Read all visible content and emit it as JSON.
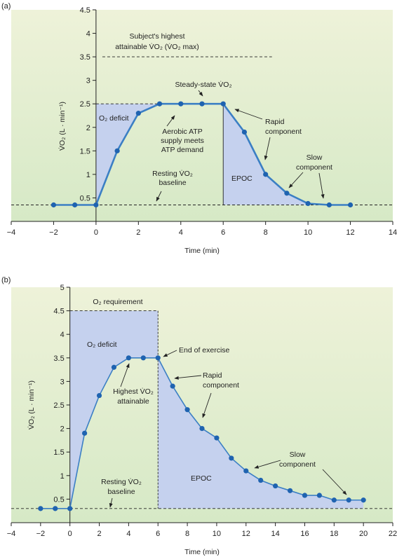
{
  "chart_data": [
    {
      "type": "line",
      "panel_label": "(a)",
      "xlabel": "Time (min)",
      "ylabel": "V̇O₂ (L · min⁻¹)",
      "xlim": [
        -4,
        14
      ],
      "ylim": [
        0,
        4.5
      ],
      "xticks": [
        -4,
        -2,
        0,
        2,
        4,
        6,
        8,
        10,
        12,
        14
      ],
      "xtick_labels": [
        "−4",
        "−2",
        "0",
        "2",
        "4",
        "6",
        "8",
        "10",
        "12",
        "14"
      ],
      "yticks": [
        0.5,
        1,
        1.5,
        2,
        2.5,
        3,
        3.5,
        4,
        4.5
      ],
      "ytick_labels": [
        "0.5",
        "1",
        "1.5",
        "2",
        "2.5",
        "3",
        "3.5",
        "4",
        "4.5"
      ],
      "series": [
        {
          "x": [
            -2,
            -1,
            0,
            1,
            2,
            3,
            4,
            5,
            6,
            7,
            8,
            9,
            10,
            11,
            12
          ],
          "y": [
            0.35,
            0.35,
            0.35,
            1.5,
            2.3,
            2.5,
            2.5,
            2.5,
            2.5,
            1.9,
            1.0,
            0.6,
            0.38,
            0.35,
            0.35
          ]
        }
      ],
      "resting_baseline": 0.35,
      "vo2max": 3.5,
      "steady_state": 2.5,
      "exercise_end": 6,
      "annotations": {
        "vo2max_line1": "Subject's highest",
        "vo2max_line2": "attainable V̇O₂ (V̇O₂ max)",
        "steady_state": "Steady-state V̇O₂",
        "o2_deficit": "O₂ deficit",
        "aerobic_1": "Aerobic ATP",
        "aerobic_2": "supply meets",
        "aerobic_3": "ATP demand",
        "resting_1": "Resting V̇O₂",
        "resting_2": "baseline",
        "epoc": "EPOC",
        "rapid_1": "Rapid",
        "rapid_2": "component",
        "slow_1": "Slow",
        "slow_2": "component"
      },
      "colors": {
        "line": "#3b7fc4",
        "marker": "#1f63b0",
        "shade": "#c5d1ee",
        "bg_top": "#eef2d9",
        "bg_bottom": "#d6e9c6"
      }
    },
    {
      "type": "line",
      "panel_label": "(b)",
      "xlabel": "Time (min)",
      "ylabel": "V̇O₂ (L · min⁻¹)",
      "xlim": [
        -4,
        22
      ],
      "ylim": [
        0,
        5
      ],
      "xticks": [
        -4,
        -2,
        0,
        2,
        4,
        6,
        8,
        10,
        12,
        14,
        16,
        18,
        20,
        22
      ],
      "xtick_labels": [
        "−4",
        "−2",
        "0",
        "2",
        "4",
        "6",
        "8",
        "10",
        "12",
        "14",
        "16",
        "18",
        "20",
        "22"
      ],
      "yticks": [
        0.5,
        1,
        1.5,
        2,
        2.5,
        3,
        3.5,
        4,
        4.5,
        5
      ],
      "ytick_labels": [
        "0.5",
        "1",
        "1.5",
        "2",
        "2.5",
        "3",
        "3.5",
        "4",
        "4.5",
        "5"
      ],
      "series": [
        {
          "x": [
            -2,
            -1,
            0,
            1,
            2,
            3,
            4,
            5,
            6,
            7,
            8,
            9,
            10,
            11,
            12,
            13,
            14,
            15,
            16,
            17,
            18,
            19,
            20
          ],
          "y": [
            0.3,
            0.3,
            0.3,
            1.9,
            2.7,
            3.3,
            3.5,
            3.5,
            3.5,
            2.9,
            2.4,
            2.0,
            1.8,
            1.37,
            1.1,
            0.9,
            0.78,
            0.68,
            0.58,
            0.58,
            0.48,
            0.48,
            0.48
          ]
        }
      ],
      "resting_baseline": 0.3,
      "o2_requirement": 4.5,
      "exercise_end": 6,
      "annotations": {
        "o2_requirement": "O₂ requirement",
        "o2_deficit": "O₂ deficit",
        "end_of_exercise": "End of exercise",
        "highest_1": "Highest V̇O₂",
        "highest_2": "attainable",
        "rapid_1": "Rapid",
        "rapid_2": "component",
        "slow_1": "Slow",
        "slow_2": "component",
        "resting_1": "Resting V̇O₂",
        "resting_2": "baseline",
        "epoc": "EPOC"
      },
      "colors": {
        "line": "#3b7fc4",
        "marker": "#1f63b0",
        "shade": "#c5d1ee",
        "bg_top": "#eef2d9",
        "bg_bottom": "#d6e9c6"
      }
    }
  ]
}
